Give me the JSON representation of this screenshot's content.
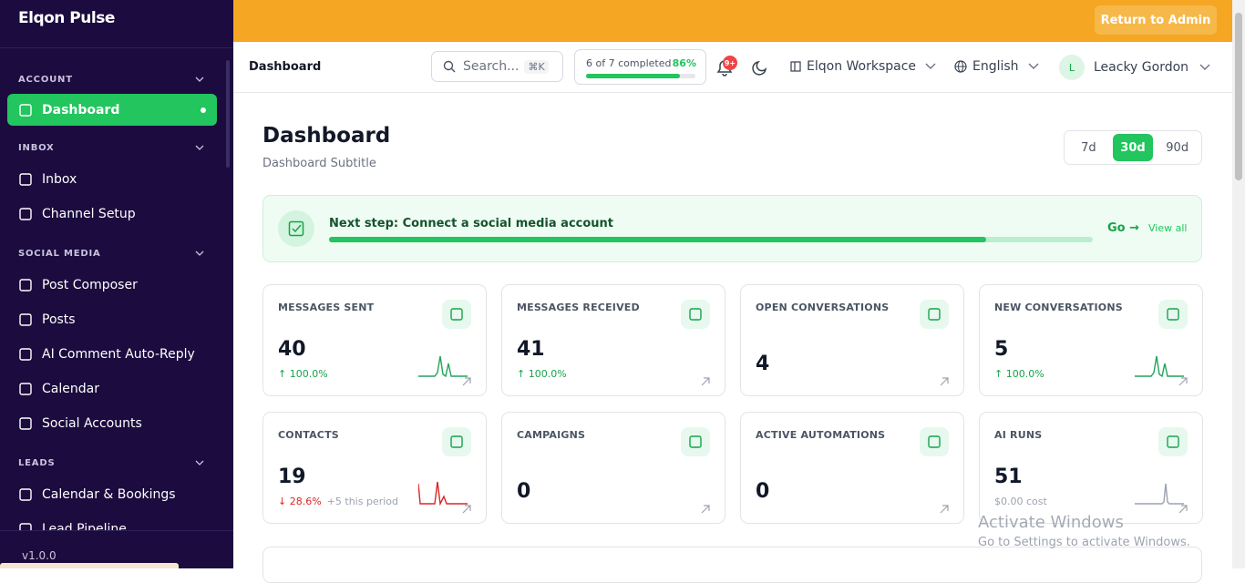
{
  "topbar": {
    "return_button": "Return to Admin"
  },
  "sidebar": {
    "brand": "Elqon Pulse",
    "sections": [
      {
        "title": "ACCOUNT",
        "items": [
          "Dashboard"
        ]
      },
      {
        "title": "INBOX",
        "items": [
          "Inbox",
          "Channel Setup"
        ]
      },
      {
        "title": "SOCIAL MEDIA",
        "items": [
          "Post Composer",
          "Posts",
          "AI Comment Auto-Reply",
          "Calendar",
          "Social Accounts"
        ]
      },
      {
        "title": "LEADS",
        "items": [
          "Calendar & Bookings",
          "Lead Pipeline"
        ]
      }
    ],
    "active_item": "Dashboard",
    "version": "v1.0.0"
  },
  "header": {
    "breadcrumb": "Dashboard",
    "search_placeholder": "Search...",
    "search_shortcut": "⌘K",
    "progress_text": "6 of 7 completed",
    "progress_percent": "86%",
    "notification_badge": "9+",
    "workspace": "Elqon Workspace",
    "language": "English",
    "user_initial": "L",
    "user_name": "Leacky Gordon"
  },
  "page": {
    "title": "Dashboard",
    "subtitle": "Dashboard Subtitle",
    "ranges": [
      "7d",
      "30d",
      "90d"
    ],
    "active_range": "30d",
    "next_step": {
      "text": "Next step: Connect a social media account",
      "go": "Go →",
      "view_all": "View all"
    },
    "stats": [
      {
        "label": "MESSAGES SENT",
        "value": 40,
        "change": "↑ 100.0%",
        "trend": "up",
        "spark": "green"
      },
      {
        "label": "MESSAGES RECEIVED",
        "value": 41,
        "change": "↑ 100.0%",
        "trend": "up"
      },
      {
        "label": "OPEN CONVERSATIONS",
        "value": 4
      },
      {
        "label": "NEW CONVERSATIONS",
        "value": 5,
        "change": "↑ 100.0%",
        "trend": "up",
        "spark": "green"
      },
      {
        "label": "CONTACTS",
        "value": 19,
        "change": "↓ 28.6%",
        "trend": "down",
        "note": "+5 this period",
        "spark": "red"
      },
      {
        "label": "CAMPAIGNS",
        "value": 0
      },
      {
        "label": "ACTIVE AUTOMATIONS",
        "value": 0
      },
      {
        "label": "AI RUNS",
        "value": 51,
        "note": "$0.00 cost",
        "spark": "gray"
      }
    ]
  },
  "watermark": {
    "title": "Activate Windows",
    "text": "Go to Settings to activate Windows."
  }
}
